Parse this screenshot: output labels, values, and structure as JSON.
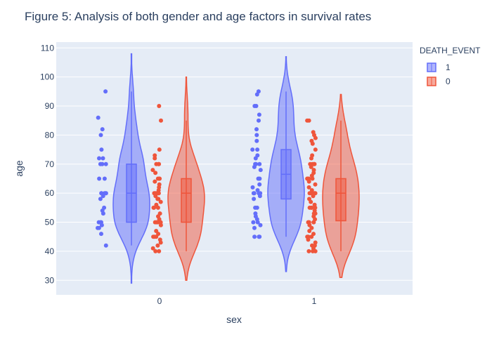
{
  "chart_data": {
    "type": "violin",
    "title": "Figure 5: Analysis of both gender and age factors in survival rates",
    "xlabel": "sex",
    "ylabel": "age",
    "categories": [
      "0",
      "1"
    ],
    "ylim": [
      25,
      112
    ],
    "yticks": [
      30,
      40,
      50,
      60,
      70,
      80,
      90,
      100,
      110
    ],
    "legend": {
      "title": "DEATH_EVENT",
      "position": "top-right"
    },
    "grid": true,
    "series": [
      {
        "name": "1",
        "color": "#636efa",
        "groups": [
          {
            "category": "0",
            "box": {
              "q1": 50,
              "median": 60,
              "q3": 70,
              "whisker_low": 42,
              "whisker_high": 95
            },
            "range": [
              29,
              108
            ],
            "points": [
              95,
              86,
              82,
              80,
              75,
              72,
              72,
              70,
              70,
              70,
              65,
              65,
              60,
              60,
              60,
              60,
              60,
              59,
              58,
              55,
              54,
              53,
              50,
              50,
              50,
              49,
              48,
              48,
              46,
              42
            ]
          },
          {
            "category": "1",
            "box": {
              "q1": 58,
              "median": 66.5,
              "q3": 75,
              "whisker_low": 45,
              "whisker_high": 95
            },
            "range": [
              33,
              107
            ],
            "points": [
              95,
              94,
              90,
              90,
              87,
              85,
              82,
              80,
              78,
              75,
              75,
              73,
              72,
              70,
              70,
              70,
              69,
              68,
              65,
              65,
              63,
              62,
              61,
              60,
              60,
              60,
              60,
              59,
              58,
              55,
              55,
              53,
              52,
              51,
              50,
              50,
              49,
              48,
              45,
              45,
              45
            ]
          }
        ]
      },
      {
        "name": "0",
        "color": "#ef553b",
        "groups": [
          {
            "category": "0",
            "box": {
              "q1": 50,
              "median": 60,
              "q3": 65,
              "whisker_low": 40,
              "whisker_high": 85
            },
            "range": [
              30,
              100
            ],
            "points": [
              90,
              85,
              75,
              73,
              72,
              70,
              70,
              70,
              68,
              67,
              65,
              65,
              65,
              64,
              63,
              62,
              61,
              60,
              60,
              60,
              60,
              60,
              59,
              58,
              58,
              57,
              56,
              55,
              55,
              55,
              53,
              52,
              51,
              50,
              50,
              50,
              50,
              49,
              47,
              46,
              45,
              45,
              45,
              44,
              43,
              42,
              41,
              40,
              40
            ]
          },
          {
            "category": "1",
            "box": {
              "q1": 50.5,
              "median": 60,
              "q3": 65,
              "whisker_low": 40,
              "whisker_high": 85
            },
            "range": [
              31,
              94
            ],
            "points": [
              85,
              85,
              81,
              80,
              79,
              78,
              77,
              75,
              73,
              72,
              70,
              70,
              70,
              70,
              70,
              69,
              68,
              67,
              66,
              65,
              65,
              65,
              65,
              64,
              63,
              62,
              61,
              60,
              60,
              60,
              60,
              60,
              60,
              59,
              58,
              57,
              56,
              55,
              55,
              55,
              55,
              54,
              53,
              53,
              52,
              51,
              50,
              50,
              50,
              50,
              49,
              48,
              47,
              46,
              45,
              45,
              45,
              44,
              43,
              42,
              42,
              41,
              40,
              40,
              40
            ]
          }
        ]
      }
    ]
  }
}
